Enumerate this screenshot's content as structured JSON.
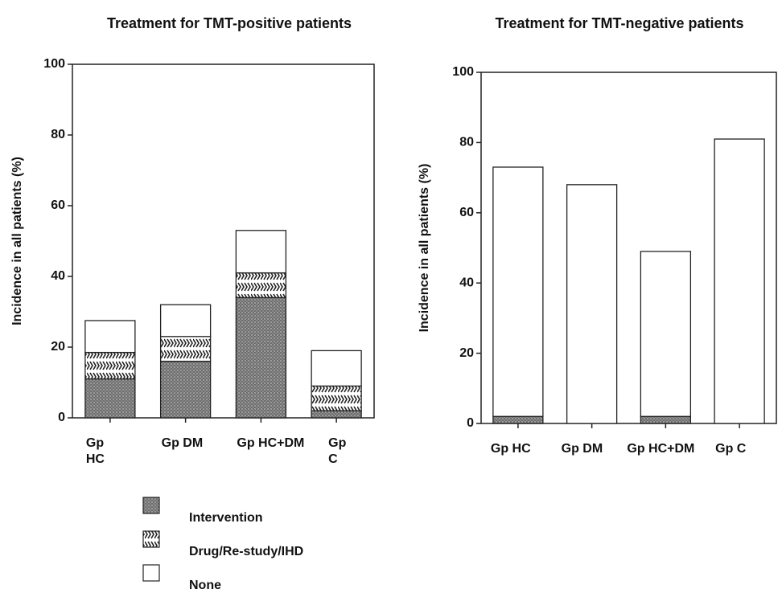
{
  "chart_data": [
    {
      "type": "bar",
      "stacked": true,
      "title": "Treatment for TMT-positive patients",
      "y_label": "Incidence in all patients (%)",
      "categories": [
        "Gp\nHC",
        "Gp DM",
        "Gp HC+DM",
        "Gp\nC"
      ],
      "series": [
        {
          "name": "Intervention",
          "color": "#777777",
          "pattern": "dots",
          "values": [
            11,
            16,
            34,
            2
          ]
        },
        {
          "name": "Drug/Re-study/IHD",
          "color": "#ffffff",
          "pattern": "zigzag",
          "values": [
            7.5,
            7,
            7,
            7
          ]
        },
        {
          "name": "None",
          "color": "#ffffff",
          "values": [
            9,
            9,
            12,
            10
          ]
        }
      ],
      "ylim": [
        0,
        100
      ],
      "yticks": [
        0,
        20,
        40,
        60,
        80,
        100
      ],
      "legend": "below"
    },
    {
      "type": "bar",
      "stacked": true,
      "title": "Treatment for TMT-negative patients",
      "y_label": "Incidence in all patients (%)",
      "categories": [
        "Gp HC",
        "Gp DM",
        "Gp HC+DM",
        "Gp C"
      ],
      "series": [
        {
          "color": "#777777",
          "pattern": "dots",
          "values": [
            2,
            0,
            2,
            0
          ]
        },
        {
          "color": "#ffffff",
          "values": [
            71,
            68,
            47,
            81
          ]
        }
      ],
      "ylim": [
        0,
        100
      ],
      "yticks": [
        0,
        20,
        40,
        60,
        80,
        100
      ]
    }
  ]
}
